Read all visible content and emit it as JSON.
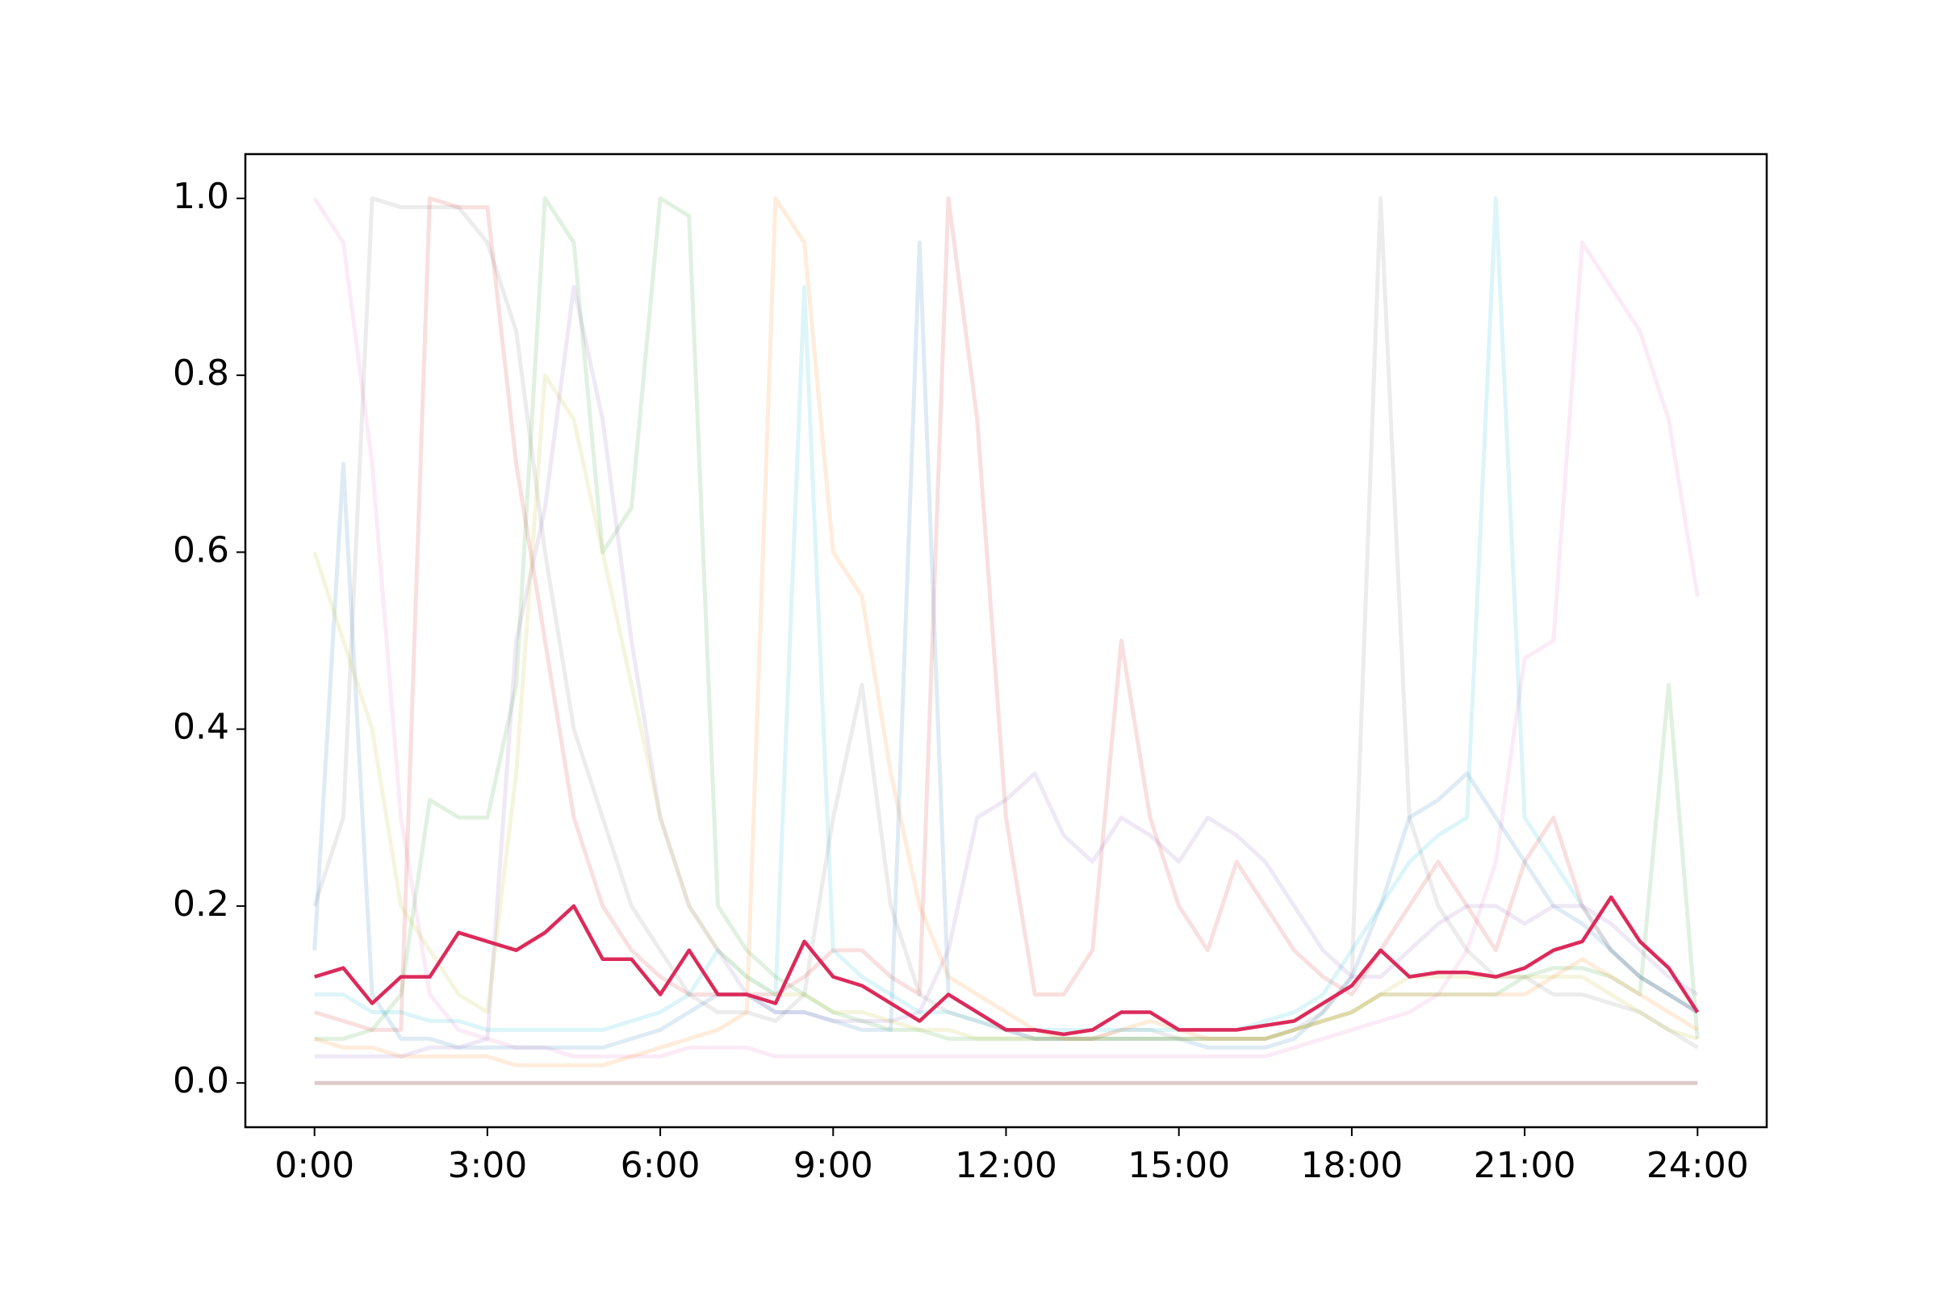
{
  "chart_data": {
    "type": "line",
    "x": [
      0,
      0.5,
      1,
      1.5,
      2,
      2.5,
      3,
      3.5,
      4,
      4.5,
      5,
      5.5,
      6,
      6.5,
      7,
      7.5,
      8,
      8.5,
      9,
      9.5,
      10,
      10.5,
      11,
      11.5,
      12,
      12.5,
      13,
      13.5,
      14,
      14.5,
      15,
      15.5,
      16,
      16.5,
      17,
      17.5,
      18,
      18.5,
      19,
      19.5,
      20,
      20.5,
      21,
      21.5,
      22,
      22.5,
      23,
      23.5,
      24
    ],
    "xlim": [
      -1.2,
      25.2
    ],
    "xticks": [
      {
        "value": 0,
        "label": "0:00"
      },
      {
        "value": 3,
        "label": "3:00"
      },
      {
        "value": 6,
        "label": "6:00"
      },
      {
        "value": 9,
        "label": "9:00"
      },
      {
        "value": 12,
        "label": "12:00"
      },
      {
        "value": 15,
        "label": "15:00"
      },
      {
        "value": 18,
        "label": "18:00"
      },
      {
        "value": 21,
        "label": "21:00"
      },
      {
        "value": 24,
        "label": "24:00"
      }
    ],
    "ylim": [
      -0.05,
      1.05
    ],
    "yticks": [
      {
        "value": 0,
        "label": "0.0"
      },
      {
        "value": 0.2,
        "label": "0.2"
      },
      {
        "value": 0.4,
        "label": "0.4"
      },
      {
        "value": 0.6,
        "label": "0.6"
      },
      {
        "value": 0.8,
        "label": "0.8"
      },
      {
        "value": 1,
        "label": "1.0"
      }
    ],
    "series": [
      {
        "color": "#e377c2",
        "alpha": 0.15,
        "values": [
          1.0,
          0.95,
          0.7,
          0.3,
          0.1,
          0.06,
          0.05,
          0.04,
          0.04,
          0.03,
          0.03,
          0.03,
          0.03,
          0.04,
          0.04,
          0.04,
          0.03,
          0.03,
          0.03,
          0.03,
          0.03,
          0.03,
          0.03,
          0.03,
          0.03,
          0.03,
          0.03,
          0.03,
          0.03,
          0.03,
          0.03,
          0.03,
          0.03,
          0.03,
          0.04,
          0.05,
          0.06,
          0.07,
          0.08,
          0.1,
          0.15,
          0.25,
          0.48,
          0.5,
          0.95,
          0.9,
          0.85,
          0.75,
          0.55
        ]
      },
      {
        "color": "#7f7f7f",
        "alpha": 0.15,
        "values": [
          0.2,
          0.3,
          1.0,
          0.99,
          0.99,
          0.99,
          0.95,
          0.85,
          0.6,
          0.4,
          0.3,
          0.2,
          0.15,
          0.1,
          0.08,
          0.08,
          0.07,
          0.1,
          0.3,
          0.45,
          0.2,
          0.1,
          0.08,
          0.07,
          0.06,
          0.05,
          0.05,
          0.05,
          0.06,
          0.06,
          0.05,
          0.05,
          0.05,
          0.05,
          0.06,
          0.08,
          0.12,
          1.0,
          0.3,
          0.2,
          0.15,
          0.12,
          0.12,
          0.1,
          0.1,
          0.09,
          0.08,
          0.06,
          0.04
        ]
      },
      {
        "color": "#2ca02c",
        "alpha": 0.15,
        "values": [
          0.05,
          0.05,
          0.06,
          0.1,
          0.32,
          0.3,
          0.3,
          0.45,
          1.0,
          0.95,
          0.6,
          0.65,
          1.0,
          0.98,
          0.2,
          0.15,
          0.12,
          0.1,
          0.08,
          0.07,
          0.06,
          0.06,
          0.05,
          0.05,
          0.05,
          0.05,
          0.05,
          0.05,
          0.05,
          0.05,
          0.05,
          0.05,
          0.05,
          0.05,
          0.06,
          0.07,
          0.08,
          0.1,
          0.1,
          0.1,
          0.1,
          0.1,
          0.12,
          0.13,
          0.13,
          0.12,
          0.1,
          0.45,
          0.05
        ]
      },
      {
        "color": "#ff7f0e",
        "alpha": 0.15,
        "values": [
          0.05,
          0.04,
          0.04,
          0.03,
          0.03,
          0.03,
          0.03,
          0.02,
          0.02,
          0.02,
          0.02,
          0.03,
          0.04,
          0.05,
          0.06,
          0.08,
          1.0,
          0.95,
          0.6,
          0.55,
          0.35,
          0.2,
          0.12,
          0.1,
          0.08,
          0.06,
          0.05,
          0.05,
          0.06,
          0.07,
          0.06,
          0.05,
          0.05,
          0.05,
          0.06,
          0.07,
          0.08,
          0.1,
          0.1,
          0.1,
          0.1,
          0.1,
          0.1,
          0.12,
          0.14,
          0.12,
          0.1,
          0.08,
          0.06
        ]
      },
      {
        "color": "#d62728",
        "alpha": 0.15,
        "values": [
          0.08,
          0.07,
          0.06,
          0.06,
          1.0,
          0.99,
          0.99,
          0.7,
          0.5,
          0.3,
          0.2,
          0.15,
          0.12,
          0.1,
          0.1,
          0.1,
          0.1,
          0.12,
          0.15,
          0.15,
          0.12,
          0.1,
          1.0,
          0.75,
          0.3,
          0.1,
          0.1,
          0.15,
          0.5,
          0.3,
          0.2,
          0.15,
          0.25,
          0.2,
          0.15,
          0.12,
          0.1,
          0.15,
          0.2,
          0.25,
          0.2,
          0.15,
          0.25,
          0.3,
          0.2,
          0.15,
          0.12,
          0.1,
          0.08
        ]
      },
      {
        "color": "#1f77b4",
        "alpha": 0.15,
        "values": [
          0.15,
          0.7,
          0.1,
          0.05,
          0.05,
          0.04,
          0.04,
          0.04,
          0.04,
          0.04,
          0.04,
          0.05,
          0.06,
          0.08,
          0.1,
          0.1,
          0.08,
          0.08,
          0.07,
          0.06,
          0.06,
          0.95,
          0.1,
          0.08,
          0.06,
          0.05,
          0.05,
          0.05,
          0.05,
          0.05,
          0.05,
          0.04,
          0.04,
          0.04,
          0.05,
          0.08,
          0.12,
          0.2,
          0.3,
          0.32,
          0.35,
          0.3,
          0.25,
          0.2,
          0.18,
          0.15,
          0.12,
          0.1,
          0.08
        ]
      },
      {
        "color": "#17becf",
        "alpha": 0.15,
        "values": [
          0.1,
          0.1,
          0.08,
          0.08,
          0.07,
          0.07,
          0.06,
          0.06,
          0.06,
          0.06,
          0.06,
          0.07,
          0.08,
          0.1,
          0.15,
          0.12,
          0.1,
          0.9,
          0.15,
          0.12,
          0.1,
          0.08,
          0.08,
          0.07,
          0.06,
          0.06,
          0.06,
          0.06,
          0.06,
          0.06,
          0.06,
          0.06,
          0.06,
          0.07,
          0.08,
          0.1,
          0.15,
          0.2,
          0.25,
          0.28,
          0.3,
          1.0,
          0.3,
          0.25,
          0.2,
          0.15,
          0.12,
          0.1,
          0.08
        ]
      },
      {
        "color": "#9467bd",
        "alpha": 0.15,
        "values": [
          0.03,
          0.03,
          0.03,
          0.03,
          0.04,
          0.04,
          0.05,
          0.5,
          0.65,
          0.9,
          0.75,
          0.5,
          0.3,
          0.2,
          0.15,
          0.1,
          0.08,
          0.08,
          0.07,
          0.07,
          0.07,
          0.08,
          0.15,
          0.3,
          0.32,
          0.35,
          0.28,
          0.25,
          0.3,
          0.28,
          0.25,
          0.3,
          0.28,
          0.25,
          0.2,
          0.15,
          0.12,
          0.12,
          0.15,
          0.18,
          0.2,
          0.2,
          0.18,
          0.2,
          0.2,
          0.18,
          0.15,
          0.12,
          0.1
        ]
      },
      {
        "color": "#bcbd22",
        "alpha": 0.15,
        "values": [
          0.6,
          0.5,
          0.4,
          0.2,
          0.15,
          0.1,
          0.08,
          0.35,
          0.8,
          0.75,
          0.6,
          0.45,
          0.3,
          0.2,
          0.15,
          0.12,
          0.1,
          0.1,
          0.08,
          0.08,
          0.07,
          0.06,
          0.06,
          0.05,
          0.05,
          0.05,
          0.05,
          0.05,
          0.05,
          0.05,
          0.05,
          0.05,
          0.05,
          0.05,
          0.06,
          0.07,
          0.08,
          0.1,
          0.12,
          0.12,
          0.12,
          0.12,
          0.12,
          0.12,
          0.12,
          0.1,
          0.08,
          0.06,
          0.05
        ]
      },
      {
        "color": "#8c564b",
        "alpha": 0.3,
        "values": [
          0,
          0,
          0,
          0,
          0,
          0,
          0,
          0,
          0,
          0,
          0,
          0,
          0,
          0,
          0,
          0,
          0,
          0,
          0,
          0,
          0,
          0,
          0,
          0,
          0,
          0,
          0,
          0,
          0,
          0,
          0,
          0,
          0,
          0,
          0,
          0,
          0,
          0,
          0,
          0,
          0,
          0,
          0,
          0,
          0,
          0,
          0,
          0,
          0
        ]
      },
      {
        "color": "#dc2a5a",
        "alpha": 1,
        "values": [
          0.12,
          0.13,
          0.09,
          0.12,
          0.12,
          0.17,
          0.16,
          0.15,
          0.17,
          0.2,
          0.14,
          0.14,
          0.1,
          0.15,
          0.1,
          0.1,
          0.09,
          0.16,
          0.12,
          0.11,
          0.09,
          0.07,
          0.1,
          0.08,
          0.06,
          0.06,
          0.055,
          0.06,
          0.08,
          0.08,
          0.06,
          0.06,
          0.06,
          0.065,
          0.07,
          0.09,
          0.11,
          0.15,
          0.12,
          0.125,
          0.125,
          0.12,
          0.13,
          0.15,
          0.16,
          0.21,
          0.16,
          0.13,
          0.08
        ]
      }
    ]
  }
}
